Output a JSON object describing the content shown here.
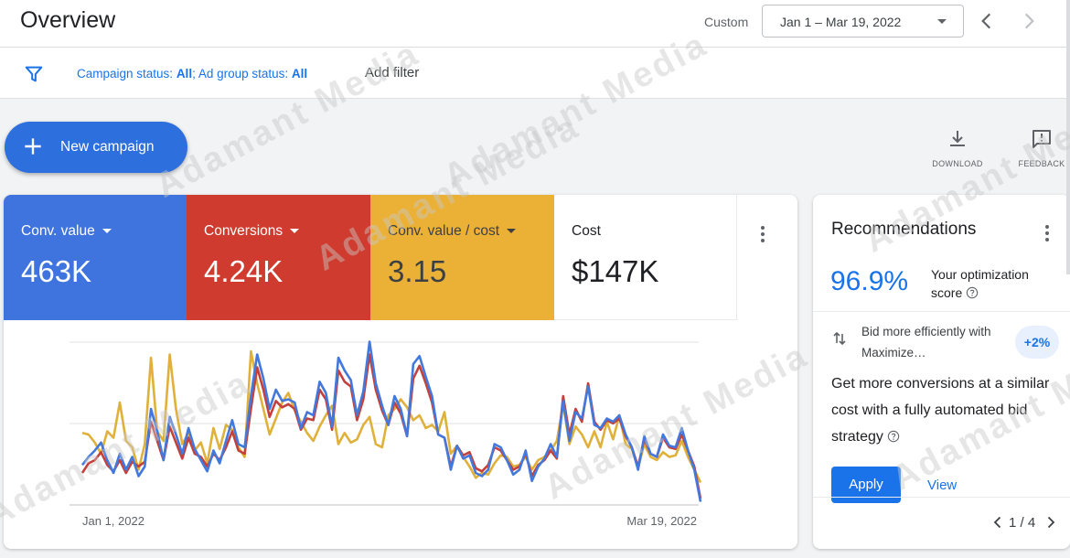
{
  "header": {
    "title": "Overview",
    "custom_label": "Custom",
    "date_range": "Jan 1 – Mar 19, 2022"
  },
  "filters": {
    "campaign_status_prefix": "Campaign status: ",
    "campaign_status_value": "All",
    "separator": "; ",
    "ad_group_status_prefix": "Ad group status: ",
    "ad_group_status_value": "All",
    "add_filter_label": "Add filter"
  },
  "actions": {
    "new_campaign_label": "New campaign",
    "download_label": "DOWNLOAD",
    "feedback_label": "FEEDBACK"
  },
  "metrics": [
    {
      "label": "Conv. value",
      "value": "463K",
      "color": "#3f74df"
    },
    {
      "label": "Conversions",
      "value": "4.24K",
      "color": "#cf3c2f"
    },
    {
      "label": "Conv. value / cost",
      "value": "3.15",
      "color": "#ebb137"
    },
    {
      "label": "Cost",
      "value": "$147K",
      "color": "#ffffff"
    }
  ],
  "chart_data": {
    "type": "line",
    "x_start_label": "Jan 1, 2022",
    "x_end_label": "Mar 19, 2022",
    "grid": true,
    "series": [
      {
        "color": "#4378dd",
        "values": [
          25,
          30,
          34,
          39,
          28,
          20,
          32,
          22,
          30,
          18,
          24,
          60,
          46,
          28,
          55,
          44,
          32,
          48,
          35,
          28,
          21,
          34,
          26,
          40,
          53,
          38,
          36,
          68,
          94,
          79,
          60,
          72,
          65,
          66,
          64,
          48,
          58,
          56,
          77,
          70,
          49,
          92,
          84,
          78,
          56,
          71,
          102,
          76,
          62,
          50,
          68,
          60,
          43,
          88,
          93,
          80,
          68,
          44,
          42,
          22,
          37,
          29,
          31,
          20,
          18,
          22,
          38,
          36,
          28,
          19,
          22,
          34,
          15,
          24,
          29,
          38,
          30,
          65,
          40,
          58,
          54,
          74,
          50,
          48,
          54,
          52,
          56,
          44,
          36,
          22,
          43,
          32,
          30,
          44,
          37,
          36,
          48,
          34,
          22,
          2
        ]
      },
      {
        "color": "#c5403a",
        "values": [
          20,
          26,
          28,
          33,
          25,
          21,
          28,
          20,
          27,
          24,
          27,
          52,
          40,
          28,
          49,
          39,
          29,
          42,
          32,
          30,
          24,
          32,
          28,
          36,
          46,
          34,
          32,
          60,
          86,
          72,
          55,
          65,
          61,
          63,
          60,
          47,
          54,
          53,
          72,
          66,
          47,
          84,
          77,
          74,
          53,
          66,
          94,
          72,
          59,
          50,
          64,
          57,
          43,
          79,
          87,
          76,
          64,
          44,
          42,
          24,
          37,
          31,
          33,
          23,
          21,
          25,
          36,
          34,
          28,
          22,
          24,
          32,
          18,
          25,
          28,
          34,
          29,
          68,
          44,
          60,
          52,
          76,
          52,
          47,
          53,
          51,
          54,
          43,
          36,
          24,
          41,
          32,
          30,
          42,
          36,
          35,
          44,
          34,
          24,
          4
        ]
      },
      {
        "color": "#e0b13a",
        "values": [
          45,
          44,
          39,
          32,
          46,
          42,
          64,
          40,
          36,
          22,
          38,
          92,
          46,
          40,
          94,
          60,
          38,
          45,
          34,
          39,
          26,
          48,
          35,
          50,
          47,
          36,
          30,
          96,
          76,
          60,
          44,
          54,
          64,
          70,
          59,
          52,
          45,
          40,
          49,
          56,
          62,
          38,
          45,
          39,
          41,
          50,
          55,
          38,
          36,
          56,
          60,
          66,
          61,
          53,
          56,
          48,
          50,
          46,
          58,
          32,
          37,
          30,
          24,
          17,
          20,
          19,
          26,
          31,
          30,
          24,
          25,
          30,
          22,
          28,
          30,
          34,
          40,
          63,
          38,
          49,
          44,
          36,
          46,
          36,
          52,
          41,
          56,
          38,
          35,
          23,
          38,
          30,
          28,
          33,
          30,
          31,
          40,
          30,
          22,
          14
        ]
      }
    ]
  },
  "recommendations": {
    "title": "Recommendations",
    "score": "96.9%",
    "score_label": "Your optimization score",
    "item_title": "Bid more efficiently with Maximize…",
    "badge": "+2%",
    "item_body": "Get more conversions at a similar cost with a fully automated bid strategy",
    "apply_label": "Apply",
    "view_label": "View",
    "pager": "1 / 4"
  },
  "watermark": "Adamant Media",
  "colors": {
    "accent": "#1a73e8",
    "new_campaign": "#2d6fdc"
  }
}
